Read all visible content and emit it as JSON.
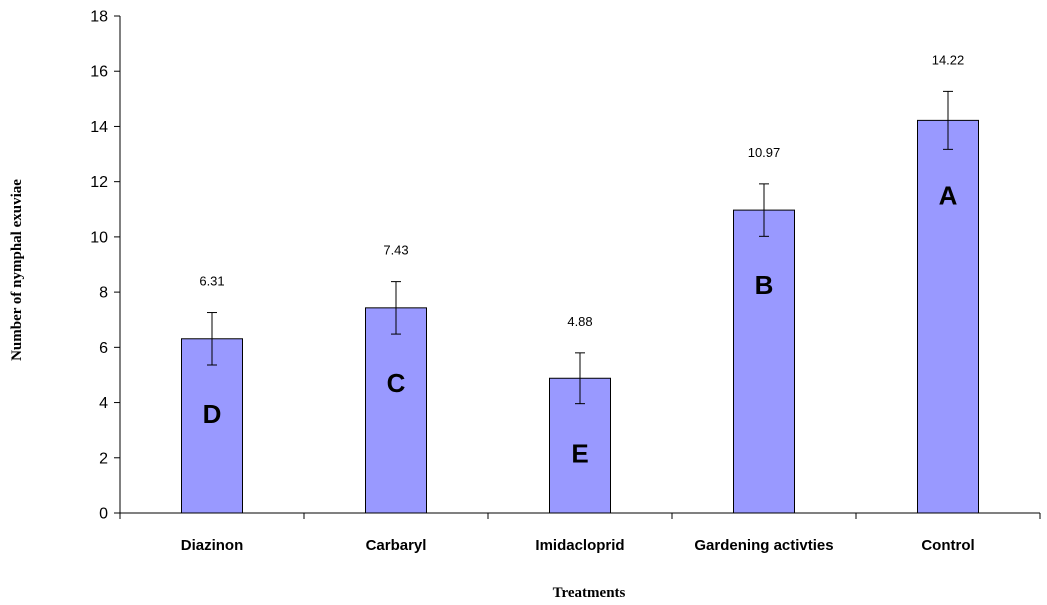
{
  "chart_data": {
    "type": "bar",
    "title": "",
    "xlabel": "Treatments",
    "ylabel": "Number of nymphal exuviae",
    "ylim": [
      0,
      18
    ],
    "yticks": [
      0,
      2,
      4,
      6,
      8,
      10,
      12,
      14,
      16,
      18
    ],
    "categories": [
      "Diazinon",
      "Carbaryl",
      "Imidacloprid",
      "Gardening activties",
      "Control"
    ],
    "values": [
      6.31,
      7.43,
      4.88,
      10.97,
      14.22
    ],
    "value_labels": [
      "6.31",
      "7.43",
      "4.88",
      "10.97",
      "14.22"
    ],
    "error": [
      0.95,
      0.95,
      0.92,
      0.95,
      1.05
    ],
    "group_letters": [
      "D",
      "C",
      "E",
      "B",
      "A"
    ],
    "bar_color": "#9999ff",
    "bar_edge_color": "#000000",
    "grid": false,
    "legend": "none"
  }
}
